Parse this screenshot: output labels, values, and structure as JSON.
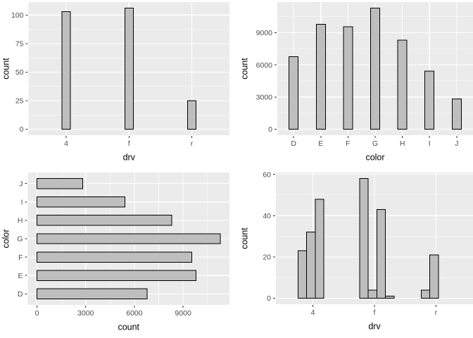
{
  "app": {
    "description": "Grid of four ggplot-style bar charts",
    "background": "#FFFFFF"
  },
  "theme": {
    "panel_bg": "#EBEBEB",
    "grid_major": "#FFFFFF",
    "grid_minor": "#FFFFFF",
    "bar_fill": "#BEBEBE",
    "bar_stroke": "#000000",
    "axis_text_color": "#4D4D4D",
    "axis_title_color": "#000000",
    "tick_mark_color": "#333333"
  },
  "chart_data": [
    {
      "id": "top-left",
      "type": "bar",
      "orientation": "vertical",
      "title": "",
      "xlabel": "drv",
      "ylabel": "count",
      "categories": [
        "4",
        "f",
        "r"
      ],
      "values": [
        103,
        106,
        25
      ],
      "value_ticks": [
        0,
        25,
        50,
        75,
        100
      ],
      "value_tick_labels": [
        "0",
        "25",
        "50",
        "75",
        "100"
      ],
      "minor_ticks": [
        12.5,
        37.5,
        62.5,
        87.5
      ],
      "value_max": 106,
      "ylim": [
        0,
        106
      ],
      "grid": true,
      "legend": "none"
    },
    {
      "id": "top-right",
      "type": "bar",
      "orientation": "vertical",
      "title": "",
      "xlabel": "color",
      "ylabel": "count",
      "categories": [
        "D",
        "E",
        "F",
        "G",
        "H",
        "I",
        "J"
      ],
      "values": [
        6775,
        9797,
        9542,
        11292,
        8304,
        5422,
        2808
      ],
      "value_ticks": [
        0,
        3000,
        6000,
        9000
      ],
      "value_tick_labels": [
        "0",
        "3000",
        "6000",
        "9000"
      ],
      "minor_ticks": [
        1500,
        4500,
        7500,
        10500
      ],
      "value_max": 11292,
      "ylim": [
        0,
        11292
      ],
      "grid": true,
      "legend": "none"
    },
    {
      "id": "bottom-left",
      "type": "bar",
      "orientation": "horizontal",
      "title": "",
      "xlabel": "count",
      "ylabel": "color",
      "categories": [
        "D",
        "E",
        "F",
        "G",
        "H",
        "I",
        "J"
      ],
      "categories_note": "first category at bottom of axis",
      "values": [
        6775,
        9797,
        9542,
        11292,
        8304,
        5422,
        2808
      ],
      "value_ticks": [
        0,
        3000,
        6000,
        9000
      ],
      "value_tick_labels": [
        "0",
        "3000",
        "6000",
        "9000"
      ],
      "minor_ticks": [
        1500,
        4500,
        7500,
        10500
      ],
      "value_max": 11292,
      "xlim": [
        0,
        11292
      ],
      "grid": true,
      "legend": "none"
    },
    {
      "id": "bottom-right",
      "type": "bar",
      "orientation": "vertical",
      "dodged": true,
      "title": "",
      "xlabel": "drv",
      "ylabel": "count",
      "categories": [
        "4",
        "f",
        "r"
      ],
      "groups": [
        [
          23,
          32,
          48
        ],
        [
          58,
          4,
          43,
          1
        ],
        [
          4,
          21
        ]
      ],
      "value_ticks": [
        0,
        20,
        40,
        60
      ],
      "value_tick_labels": [
        "0",
        "20",
        "40",
        "60"
      ],
      "minor_ticks": [
        10,
        30,
        50
      ],
      "value_max": 58,
      "ylim": [
        0,
        58
      ],
      "grid": true,
      "legend": "none"
    }
  ]
}
